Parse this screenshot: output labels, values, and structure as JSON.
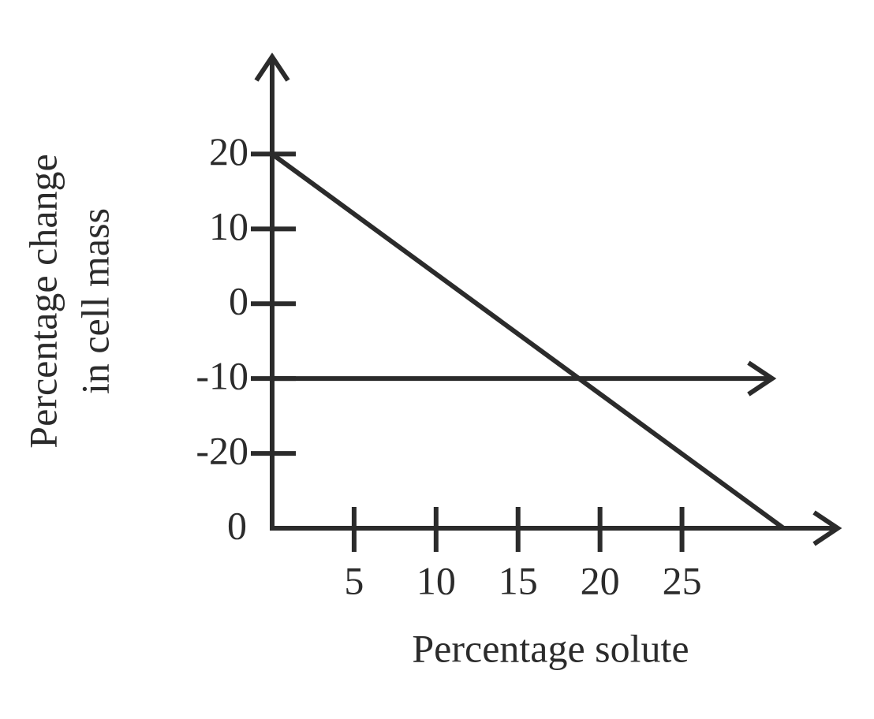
{
  "chart_data": {
    "type": "line",
    "xlabel": "Percentage solute",
    "ylabel": [
      "Percentage change",
      "in cell mass"
    ],
    "xlim": [
      0,
      34.5
    ],
    "ylim": [
      -30,
      33
    ],
    "xticks": [
      5,
      10,
      15,
      20,
      25
    ],
    "yticks": [
      20,
      10,
      0,
      -10,
      -20,
      {
        "value": -30,
        "label": "0"
      }
    ],
    "color": "#2b2b2b",
    "series": [
      {
        "color": "#2b2b2b",
        "x": [
          0,
          31.2
        ],
        "values": [
          20,
          -30
        ],
        "arrow": false
      },
      {
        "color": "#2b2b2b",
        "x": [
          0,
          30.5
        ],
        "values": [
          -10,
          -10
        ],
        "arrow": true
      }
    ]
  }
}
